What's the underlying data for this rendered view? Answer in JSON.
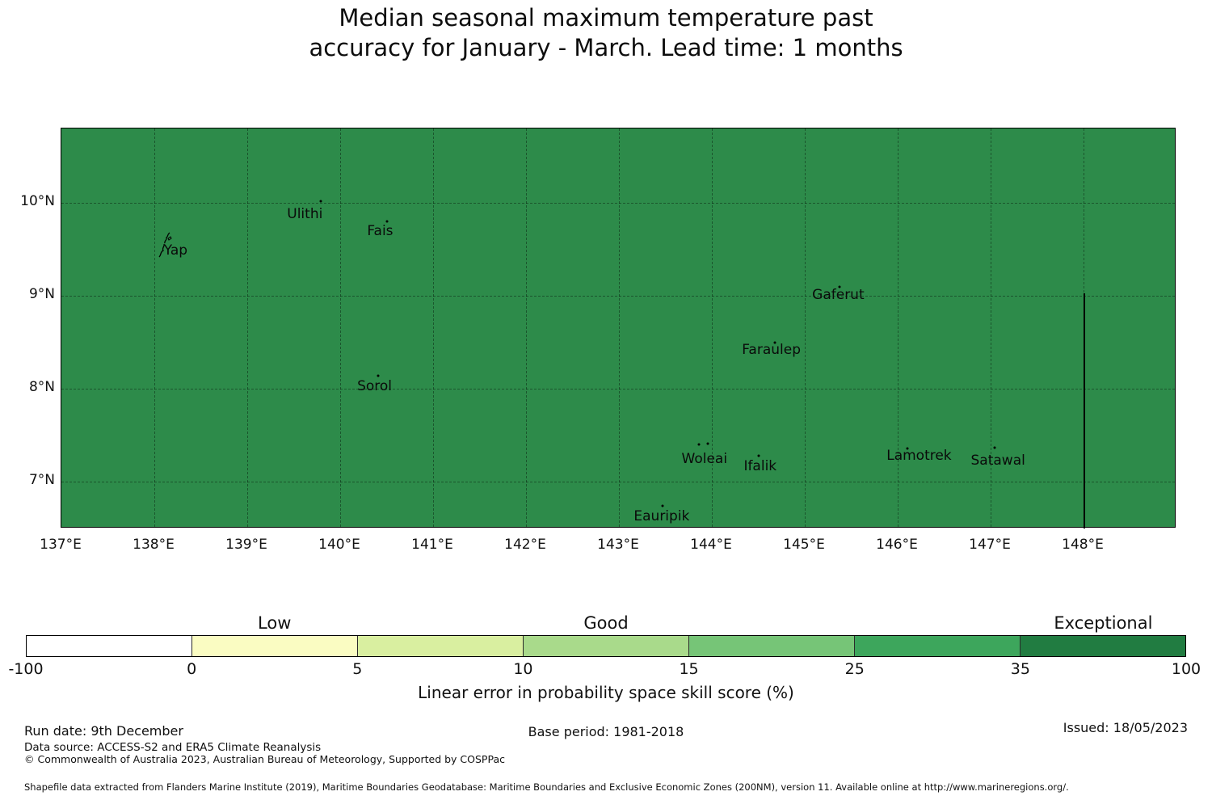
{
  "title": {
    "line1": "Median seasonal maximum temperature past",
    "line2": "accuracy for January - March. Lead time: 1 months"
  },
  "map": {
    "fill_color": "#2d8b4a",
    "grid_color": "rgba(0,0,0,0.38)",
    "x_ticks": [
      {
        "label": "137°E",
        "lon": 137
      },
      {
        "label": "138°E",
        "lon": 138
      },
      {
        "label": "139°E",
        "lon": 139
      },
      {
        "label": "140°E",
        "lon": 140
      },
      {
        "label": "141°E",
        "lon": 141
      },
      {
        "label": "142°E",
        "lon": 142
      },
      {
        "label": "143°E",
        "lon": 143
      },
      {
        "label": "144°E",
        "lon": 144
      },
      {
        "label": "145°E",
        "lon": 145
      },
      {
        "label": "146°E",
        "lon": 146
      },
      {
        "label": "147°E",
        "lon": 147
      },
      {
        "label": "148°E",
        "lon": 148
      }
    ],
    "y_ticks": [
      {
        "label": "10°N",
        "lat": 10
      },
      {
        "label": "9°N",
        "lat": 9
      },
      {
        "label": "8°N",
        "lat": 8
      },
      {
        "label": "7°N",
        "lat": 7
      }
    ],
    "islands": [
      {
        "name": "Yap",
        "label_lon": 138.23,
        "label_lat": 9.49,
        "dots": []
      },
      {
        "name": "Ulithi",
        "label_lon": 139.62,
        "label_lat": 9.88,
        "dots": [
          [
            139.79,
            10.02
          ]
        ]
      },
      {
        "name": "Fais",
        "label_lon": 140.43,
        "label_lat": 9.7,
        "dots": [
          [
            140.5,
            9.8
          ]
        ]
      },
      {
        "name": "Sorol",
        "label_lon": 140.37,
        "label_lat": 8.03,
        "dots": [
          [
            140.41,
            8.14
          ]
        ]
      },
      {
        "name": "Gaferut",
        "label_lon": 145.36,
        "label_lat": 9.01,
        "dots": [
          [
            145.37,
            9.1
          ]
        ]
      },
      {
        "name": "Faraulep",
        "label_lon": 144.64,
        "label_lat": 8.42,
        "dots": [
          [
            144.68,
            8.5
          ]
        ]
      },
      {
        "name": "Woleai",
        "label_lon": 143.92,
        "label_lat": 7.25,
        "dots": [
          [
            143.86,
            7.4
          ],
          [
            143.96,
            7.41
          ]
        ]
      },
      {
        "name": "Ifalik",
        "label_lon": 144.52,
        "label_lat": 7.17,
        "dots": [
          [
            144.5,
            7.28
          ]
        ]
      },
      {
        "name": "Lamotrek",
        "label_lon": 146.23,
        "label_lat": 7.28,
        "dots": [
          [
            146.1,
            7.36
          ]
        ]
      },
      {
        "name": "Satawal",
        "label_lon": 147.08,
        "label_lat": 7.23,
        "dots": [
          [
            147.04,
            7.37
          ]
        ]
      },
      {
        "name": "Eauripik",
        "label_lon": 143.46,
        "label_lat": 6.63,
        "dots": [
          [
            143.47,
            6.74
          ]
        ]
      }
    ],
    "eez_boundary": {
      "lon": 148.0,
      "lat_from": 9.03,
      "lat_to": 6.5
    }
  },
  "colorbar": {
    "segments": [
      {
        "range": "-100 to 0",
        "color": "#ffffff"
      },
      {
        "range": "0 to 5",
        "color": "#fafcc2"
      },
      {
        "range": "5 to 10",
        "color": "#d9efa0"
      },
      {
        "range": "10 to 15",
        "color": "#a9da8b"
      },
      {
        "range": "15 to 25",
        "color": "#76c577"
      },
      {
        "range": "25 to 35",
        "color": "#3da65c"
      },
      {
        "range": "35 to 100",
        "color": "#217c41"
      }
    ],
    "tick_labels": [
      "-100",
      "0",
      "5",
      "10",
      "15",
      "25",
      "35",
      "100"
    ],
    "categories": [
      {
        "label": "Low",
        "segment_center": 1.5
      },
      {
        "label": "Good",
        "segment_center": 3.5
      },
      {
        "label": "Exceptional",
        "segment_center": 6.5
      }
    ],
    "axis_label": "Linear error in probability space skill score (%)"
  },
  "footer": {
    "run_date": "Run date: 9th December",
    "base_period": "Base period: 1981-2018",
    "issued": "Issued: 18/05/2023",
    "data_source": "Data source: ACCESS-S2 and ERA5 Climate Reanalysis",
    "copyright": "© Commonwealth of Australia 2023, Australian Bureau of Meteorology, Supported by COSPPac",
    "shapefile_note": "Shapefile data extracted from Flanders Marine Institute (2019), Maritime Boundaries Geodatabase: Maritime Boundaries and Exclusive Economic Zones (200NM), version 11. Available online at http://www.marineregions.org/."
  },
  "chart_data": {
    "type": "heatmap",
    "title": "Median seasonal maximum temperature past accuracy for January - March. Lead time: 1 months",
    "x_axis": {
      "tick_labels": [
        "137°E",
        "138°E",
        "139°E",
        "140°E",
        "141°E",
        "142°E",
        "143°E",
        "144°E",
        "145°E",
        "146°E",
        "147°E",
        "148°E"
      ],
      "range_lon": [
        137,
        149
      ]
    },
    "y_axis": {
      "tick_labels": [
        "7°N",
        "8°N",
        "9°N",
        "10°N"
      ],
      "range_lat": [
        6.5,
        10.8
      ]
    },
    "grid": "dashed graticule at 1 degree spacing",
    "field": {
      "description": "single uniform skill-score band filling the entire mapped region",
      "fill_color": "#2d8b4a",
      "estimated_skill_bin_percent": "25-35"
    },
    "colorbar_scale": {
      "boundaries": [
        -100,
        0,
        5,
        10,
        15,
        25,
        35,
        100
      ],
      "category_labels": [
        "Low",
        "Good",
        "Exceptional"
      ],
      "axis_label": "Linear error in probability space skill score (%)",
      "colors": [
        "#ffffff",
        "#fafcc2",
        "#d9efa0",
        "#a9da8b",
        "#76c577",
        "#3da65c",
        "#217c41"
      ],
      "position": "horizontal, below map"
    },
    "annotations": [
      {
        "name": "Yap",
        "lon": 138.1,
        "lat": 9.5
      },
      {
        "name": "Ulithi",
        "lon": 139.79,
        "lat": 10.02
      },
      {
        "name": "Fais",
        "lon": 140.5,
        "lat": 9.8
      },
      {
        "name": "Sorol",
        "lon": 140.41,
        "lat": 8.14
      },
      {
        "name": "Gaferut",
        "lon": 145.37,
        "lat": 9.1
      },
      {
        "name": "Faraulep",
        "lon": 144.68,
        "lat": 8.5
      },
      {
        "name": "Woleai",
        "lon": 143.9,
        "lat": 7.4
      },
      {
        "name": "Ifalik",
        "lon": 144.5,
        "lat": 7.28
      },
      {
        "name": "Lamotrek",
        "lon": 146.1,
        "lat": 7.36
      },
      {
        "name": "Satawal",
        "lon": 147.04,
        "lat": 7.37
      },
      {
        "name": "Eauripik",
        "lon": 143.47,
        "lat": 6.74
      }
    ],
    "boundary_line": {
      "description": "vertical black maritime boundary line",
      "lon": 148.0,
      "lat_from": 9.03,
      "lat_to": 6.5
    }
  }
}
